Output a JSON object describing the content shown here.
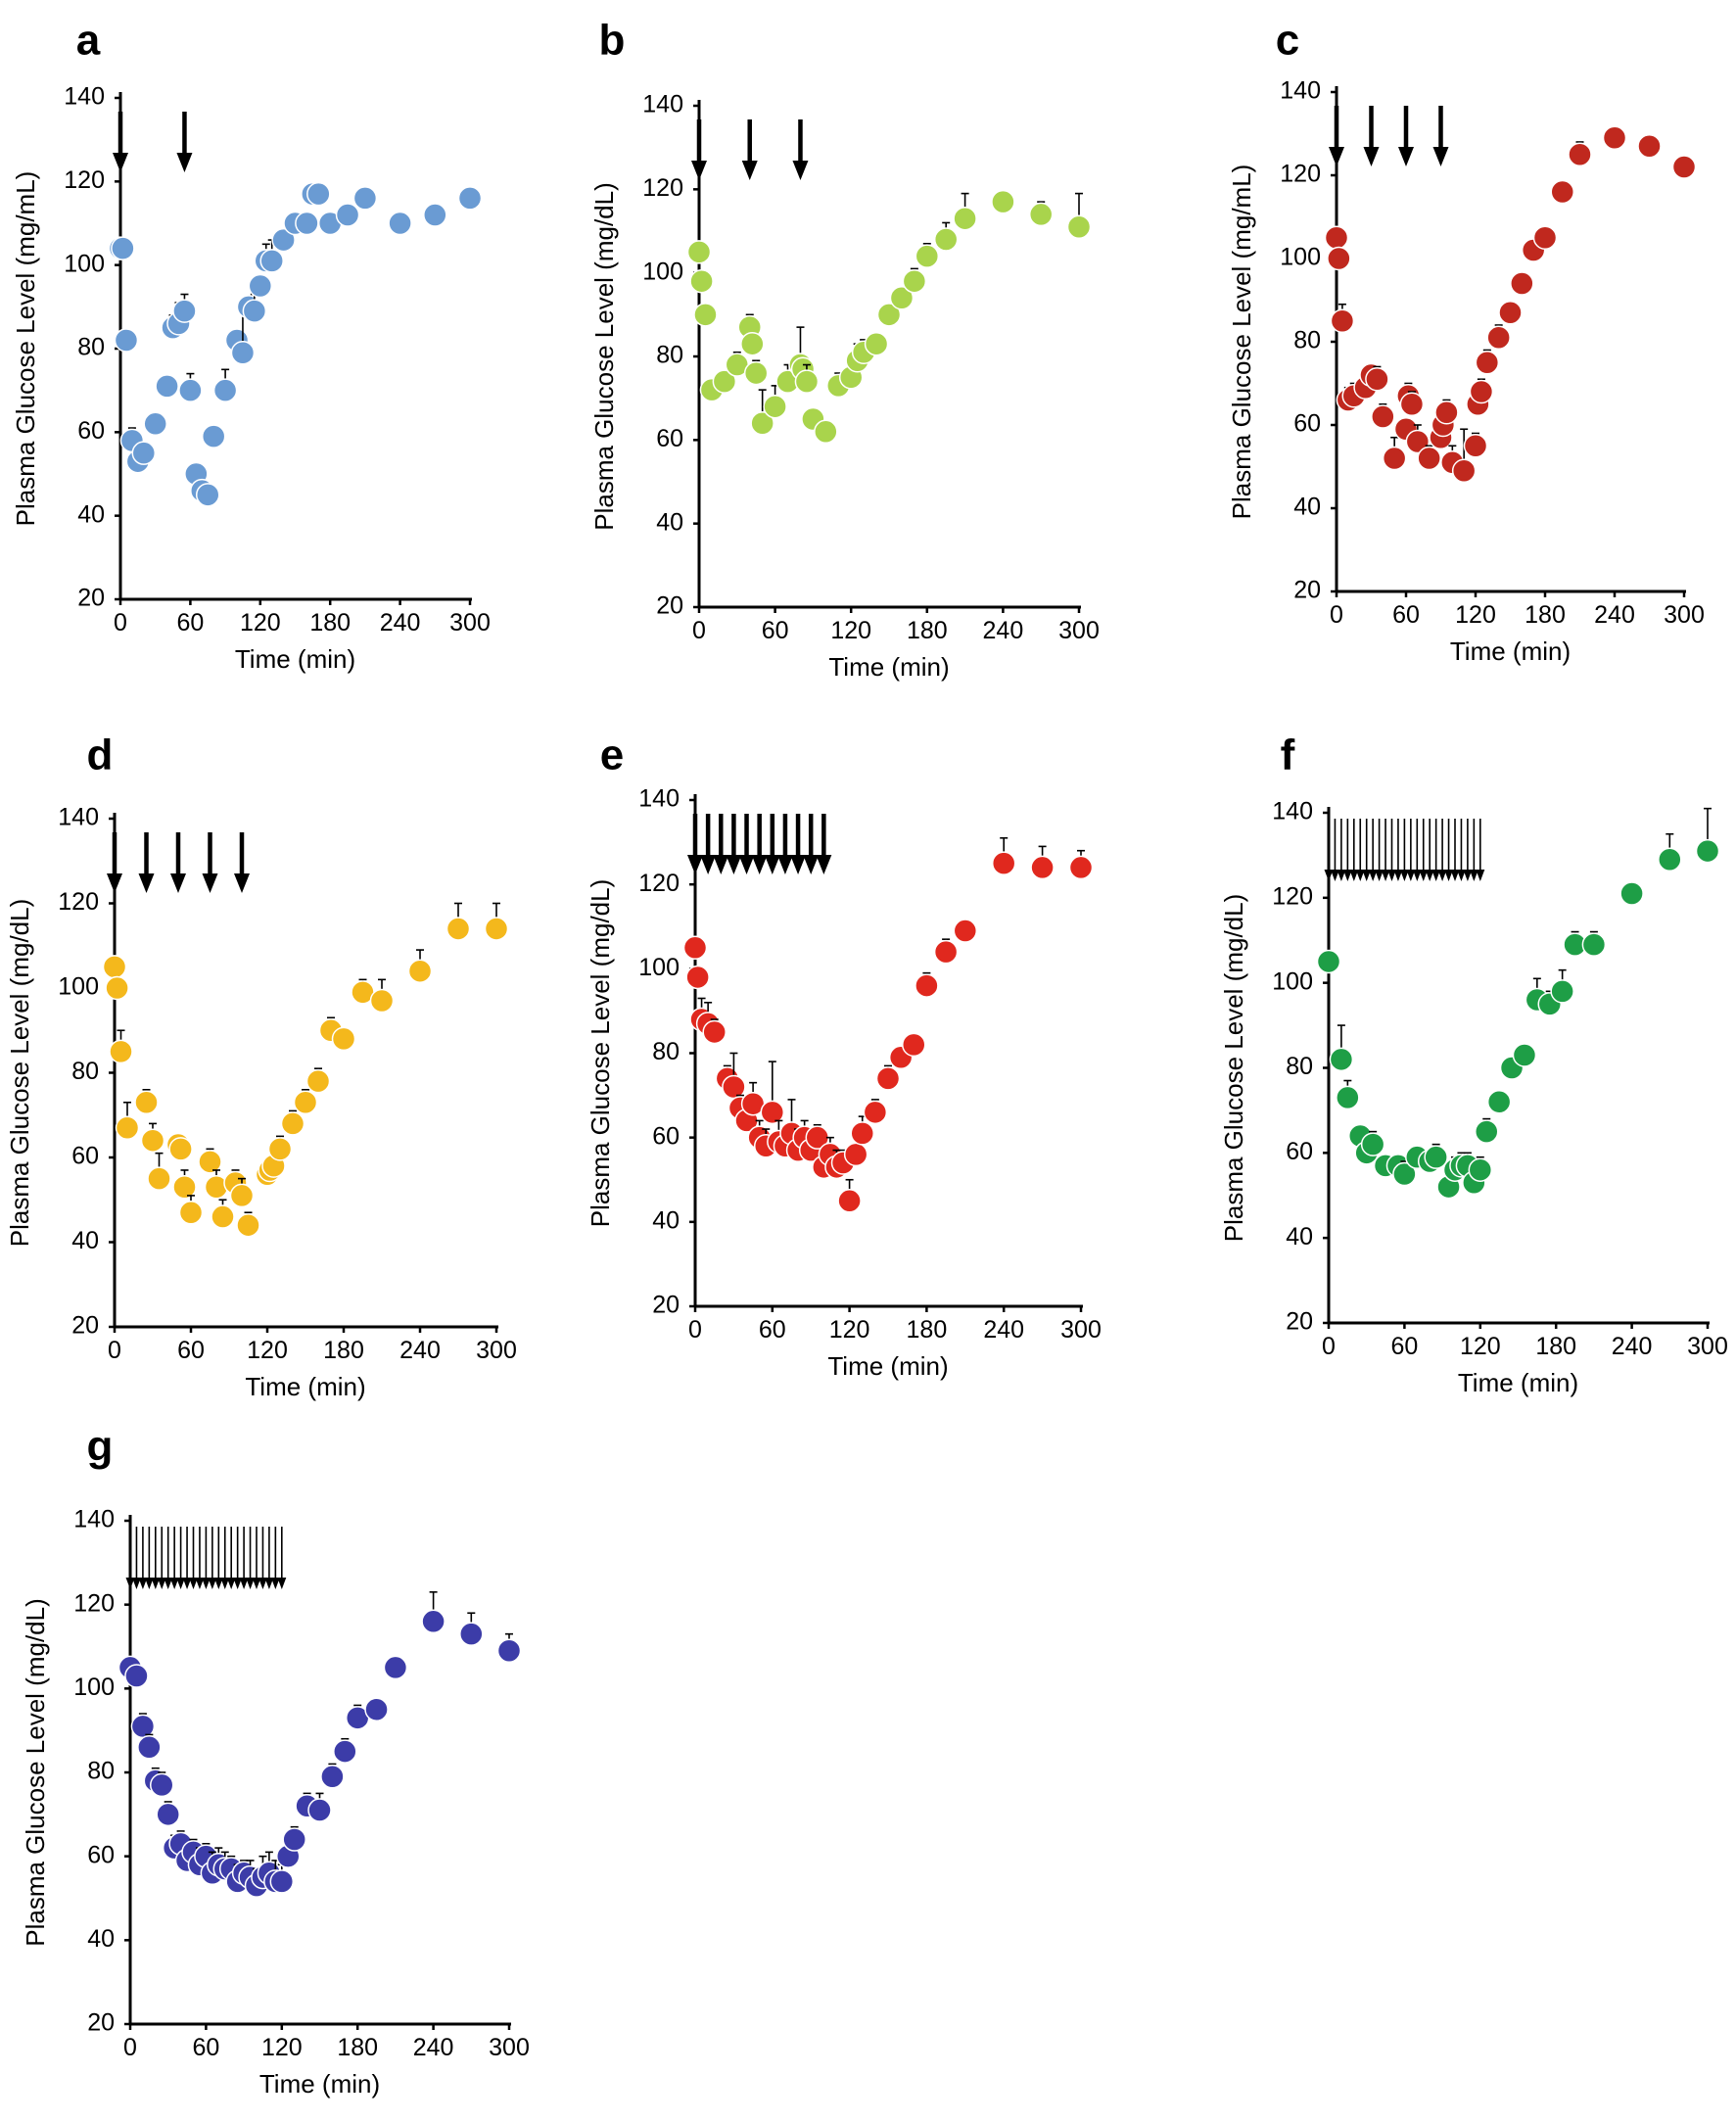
{
  "figure": {
    "x_ticks": [
      0,
      60,
      120,
      180,
      240,
      300
    ],
    "y_ticks": [
      20,
      40,
      60,
      80,
      100,
      120,
      140
    ]
  },
  "chart_data": [
    {
      "panel": "a",
      "type": "scatter",
      "title": "",
      "xlabel": "Time (min)",
      "ylabel": "Plasma Glucose Level (mg/mL)",
      "xlim": [
        0,
        300
      ],
      "ylim": [
        20,
        140
      ],
      "grid": false,
      "legend": "none",
      "color": "#6a9bd3",
      "dose_markers_min": [
        0,
        55
      ],
      "series": [
        {
          "name": "a",
          "x": [
            0,
            2,
            5,
            10,
            15,
            20,
            30,
            40,
            45,
            50,
            55,
            60,
            65,
            70,
            75,
            80,
            90,
            100,
            105,
            110,
            115,
            120,
            125,
            130,
            140,
            150,
            160,
            165,
            170,
            180,
            195,
            210,
            240,
            270,
            300
          ],
          "y": [
            104,
            104,
            82,
            58,
            53,
            55,
            62,
            71,
            85,
            86,
            89,
            70,
            50,
            46,
            45,
            59,
            70,
            82,
            79,
            90,
            89,
            95,
            101,
            101,
            106,
            110,
            110,
            117,
            117,
            110,
            112,
            116,
            110,
            112,
            116
          ],
          "err": [
            0,
            0,
            0,
            3,
            3,
            2,
            0,
            2,
            3,
            5,
            4,
            4,
            0,
            0,
            0,
            0,
            5,
            0,
            10,
            0,
            4,
            0,
            4,
            5,
            0,
            2,
            0,
            2,
            2,
            0,
            2,
            2,
            0,
            2,
            2
          ]
        }
      ]
    },
    {
      "panel": "b",
      "type": "scatter",
      "title": "",
      "xlabel": "Time (min)",
      "ylabel": "Plasma Glucose Level (mg/dL)",
      "xlim": [
        0,
        300
      ],
      "ylim": [
        20,
        140
      ],
      "grid": false,
      "legend": "none",
      "color": "#a9d44c",
      "dose_markers_min": [
        0,
        40,
        80
      ],
      "series": [
        {
          "name": "b",
          "x": [
            0,
            2,
            5,
            10,
            20,
            30,
            40,
            42,
            45,
            50,
            60,
            70,
            80,
            82,
            85,
            90,
            100,
            110,
            120,
            125,
            130,
            140,
            150,
            160,
            170,
            180,
            195,
            210,
            240,
            270,
            300
          ],
          "y": [
            105,
            98,
            90,
            72,
            74,
            78,
            87,
            83,
            76,
            64,
            68,
            74,
            78,
            77,
            74,
            65,
            62,
            73,
            75,
            79,
            81,
            83,
            90,
            94,
            98,
            104,
            108,
            113,
            117,
            114,
            111
          ],
          "err": [
            0,
            0,
            0,
            0,
            2,
            3,
            3,
            0,
            3,
            8,
            5,
            4,
            9,
            0,
            4,
            0,
            0,
            3,
            3,
            4,
            3,
            0,
            0,
            2,
            3,
            3,
            4,
            6,
            0,
            3,
            8
          ]
        }
      ]
    },
    {
      "panel": "c",
      "type": "scatter",
      "title": "",
      "xlabel": "Time (min)",
      "ylabel": "Plasma Glucose Level (mg/mL)",
      "xlim": [
        0,
        300
      ],
      "ylim": [
        20,
        140
      ],
      "grid": false,
      "legend": "none",
      "color": "#c0281e",
      "dose_markers_min": [
        0,
        30,
        60,
        90
      ],
      "series": [
        {
          "name": "c",
          "x": [
            0,
            2,
            5,
            10,
            15,
            25,
            30,
            35,
            40,
            50,
            60,
            62,
            65,
            70,
            80,
            90,
            92,
            95,
            100,
            110,
            120,
            122,
            125,
            130,
            140,
            150,
            160,
            170,
            180,
            195,
            210,
            240,
            270,
            300
          ],
          "y": [
            105,
            100,
            85,
            66,
            67,
            69,
            72,
            71,
            62,
            52,
            59,
            67,
            65,
            56,
            52,
            57,
            60,
            63,
            51,
            49,
            55,
            65,
            68,
            75,
            81,
            87,
            94,
            102,
            105,
            116,
            125,
            129,
            127,
            122
          ],
          "err": [
            0,
            0,
            4,
            3,
            3,
            3,
            2,
            3,
            3,
            5,
            2,
            3,
            3,
            4,
            3,
            3,
            2,
            3,
            4,
            10,
            3,
            2,
            3,
            3,
            3,
            0,
            0,
            2,
            2,
            0,
            3,
            2,
            0,
            0
          ]
        }
      ]
    },
    {
      "panel": "d",
      "type": "scatter",
      "title": "",
      "xlabel": "Time (min)",
      "ylabel": "Plasma Glucose Level (mg/dL)",
      "xlim": [
        0,
        300
      ],
      "ylim": [
        20,
        140
      ],
      "grid": false,
      "legend": "none",
      "color": "#f4b81c",
      "dose_markers_min": [
        0,
        25,
        50,
        75,
        100
      ],
      "series": [
        {
          "name": "d",
          "x": [
            0,
            2,
            5,
            10,
            25,
            30,
            35,
            50,
            52,
            55,
            60,
            75,
            80,
            85,
            95,
            100,
            105,
            120,
            122,
            125,
            130,
            140,
            150,
            160,
            170,
            180,
            195,
            210,
            240,
            270,
            300
          ],
          "y": [
            105,
            100,
            85,
            67,
            73,
            64,
            55,
            63,
            62,
            53,
            47,
            59,
            53,
            46,
            54,
            51,
            44,
            56,
            57,
            58,
            62,
            68,
            73,
            78,
            90,
            88,
            99,
            97,
            104,
            114,
            114
          ],
          "err": [
            0,
            0,
            5,
            6,
            3,
            4,
            6,
            2,
            2,
            4,
            4,
            3,
            4,
            4,
            3,
            4,
            3,
            3,
            2,
            2,
            3,
            3,
            3,
            3,
            3,
            2,
            3,
            5,
            5,
            6,
            6
          ]
        }
      ]
    },
    {
      "panel": "e",
      "type": "scatter",
      "title": "",
      "xlabel": "Time (min)",
      "ylabel": "Plasma Glucose Level (mg/dL)",
      "xlim": [
        0,
        300
      ],
      "ylim": [
        20,
        140
      ],
      "grid": false,
      "legend": "none",
      "color": "#e0281e",
      "dose_markers_min": [
        0,
        10,
        20,
        30,
        40,
        50,
        60,
        70,
        80,
        90,
        100
      ],
      "series": [
        {
          "name": "e",
          "x": [
            0,
            2,
            5,
            10,
            15,
            25,
            30,
            35,
            40,
            45,
            50,
            55,
            60,
            65,
            70,
            75,
            80,
            85,
            90,
            95,
            100,
            105,
            110,
            115,
            120,
            125,
            130,
            140,
            150,
            160,
            170,
            180,
            195,
            210,
            240,
            270,
            300
          ],
          "y": [
            105,
            98,
            88,
            87,
            85,
            74,
            72,
            67,
            64,
            68,
            60,
            58,
            66,
            59,
            58,
            61,
            57,
            60,
            57,
            60,
            53,
            56,
            53,
            54,
            45,
            56,
            61,
            66,
            74,
            79,
            82,
            96,
            104,
            109,
            125,
            124,
            124
          ],
          "err": [
            0,
            0,
            5,
            5,
            3,
            3,
            8,
            3,
            4,
            5,
            4,
            4,
            12,
            5,
            3,
            8,
            5,
            4,
            4,
            3,
            2,
            4,
            4,
            3,
            5,
            4,
            4,
            3,
            3,
            2,
            2,
            3,
            3,
            2,
            6,
            5,
            4
          ]
        }
      ]
    },
    {
      "panel": "f",
      "type": "scatter",
      "title": "",
      "xlabel": "Time (min)",
      "ylabel": "Plasma Glucose Level (mg/dL)",
      "xlim": [
        0,
        300
      ],
      "ylim": [
        20,
        140
      ],
      "grid": false,
      "legend": "none",
      "color": "#1e9e46",
      "dose_markers_min": [
        0,
        5,
        10,
        15,
        20,
        25,
        30,
        35,
        40,
        45,
        50,
        55,
        60,
        65,
        70,
        75,
        80,
        85,
        90,
        95,
        100,
        105,
        110,
        115,
        120
      ],
      "series": [
        {
          "name": "f",
          "x": [
            0,
            10,
            15,
            25,
            30,
            35,
            45,
            55,
            60,
            70,
            80,
            85,
            95,
            100,
            105,
            110,
            115,
            120,
            125,
            135,
            145,
            155,
            165,
            175,
            185,
            195,
            210,
            240,
            270,
            300
          ],
          "y": [
            105,
            82,
            73,
            64,
            60,
            62,
            57,
            57,
            55,
            59,
            58,
            59,
            52,
            56,
            57,
            57,
            53,
            56,
            65,
            72,
            80,
            83,
            96,
            95,
            98,
            109,
            109,
            121,
            129,
            131
          ],
          "err": [
            0,
            8,
            4,
            2,
            3,
            3,
            2,
            2,
            3,
            2,
            2,
            3,
            4,
            3,
            3,
            3,
            4,
            3,
            3,
            2,
            2,
            2,
            5,
            3,
            5,
            3,
            3,
            0,
            6,
            10
          ]
        }
      ]
    },
    {
      "panel": "g",
      "type": "scatter",
      "title": "",
      "xlabel": "Time (min)",
      "ylabel": "Plasma Glucose Level (mg/dL)",
      "xlim": [
        0,
        300
      ],
      "ylim": [
        20,
        140
      ],
      "grid": false,
      "legend": "none",
      "color": "#3c3ca8",
      "dose_markers_min": [
        0,
        5,
        10,
        15,
        20,
        25,
        30,
        35,
        40,
        45,
        50,
        55,
        60,
        65,
        70,
        75,
        80,
        85,
        90,
        95,
        100,
        105,
        110,
        115,
        120
      ],
      "series": [
        {
          "name": "g",
          "x": [
            0,
            5,
            10,
            15,
            20,
            25,
            30,
            35,
            40,
            45,
            50,
            55,
            60,
            65,
            70,
            75,
            80,
            85,
            90,
            95,
            100,
            105,
            110,
            115,
            120,
            125,
            130,
            140,
            150,
            160,
            170,
            180,
            195,
            210,
            240,
            270,
            300
          ],
          "y": [
            105,
            103,
            91,
            86,
            78,
            77,
            70,
            62,
            63,
            59,
            61,
            58,
            60,
            56,
            58,
            57,
            57,
            54,
            56,
            55,
            53,
            55,
            56,
            54,
            54,
            60,
            64,
            72,
            71,
            79,
            85,
            93,
            95,
            105,
            116,
            113,
            109
          ],
          "err": [
            0,
            0,
            3,
            3,
            3,
            3,
            3,
            3,
            3,
            3,
            3,
            4,
            3,
            5,
            4,
            4,
            3,
            4,
            3,
            4,
            4,
            5,
            5,
            5,
            4,
            4,
            3,
            3,
            4,
            3,
            3,
            3,
            2,
            0,
            7,
            5,
            4
          ]
        }
      ]
    }
  ]
}
